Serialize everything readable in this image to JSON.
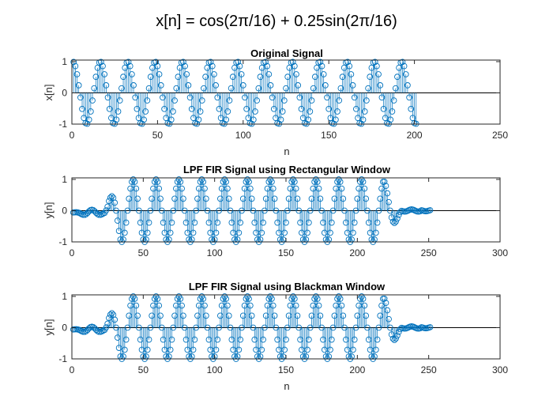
{
  "figure": {
    "title": "x[n] = cos(2π/16) + 0.25sin(2π/16)",
    "stem_color": "#0072BD"
  },
  "chart_data": [
    {
      "type": "stem",
      "title": "Original Signal",
      "xlabel": "n",
      "ylabel": "x[n]",
      "xlim": [
        0,
        250
      ],
      "ylim": [
        -1,
        1
      ],
      "xticks": [
        0,
        50,
        100,
        150,
        200,
        250
      ],
      "yticks": [
        -1,
        0,
        1
      ],
      "x_range": [
        1,
        201
      ],
      "model": "cos(2πn/16) + 0.25sin(2πn/16), peak-normalized",
      "grid": false
    },
    {
      "type": "stem",
      "title": "LPF FIR Signal using Rectangular Window",
      "xlabel": "n",
      "ylabel": "y[n]",
      "xlim": [
        0,
        300
      ],
      "ylim": [
        -1,
        1
      ],
      "xticks": [
        0,
        50,
        100,
        150,
        200,
        250,
        300
      ],
      "yticks": [
        -1,
        0,
        1
      ],
      "x_range": [
        1,
        251
      ],
      "model": "filtered sinusoid, period 16, small ripple at edges",
      "grid": false
    },
    {
      "type": "stem",
      "title": "LPF FIR Signal using Blackman Window",
      "xlabel": "n",
      "ylabel": "y[n]",
      "xlim": [
        0,
        300
      ],
      "ylim": [
        -1,
        1
      ],
      "xticks": [
        0,
        50,
        100,
        150,
        200,
        250,
        300
      ],
      "yticks": [
        -1,
        0,
        1
      ],
      "x_range": [
        1,
        251
      ],
      "model": "filtered sinusoid, period 16, small ripple at edges",
      "grid": false
    }
  ]
}
